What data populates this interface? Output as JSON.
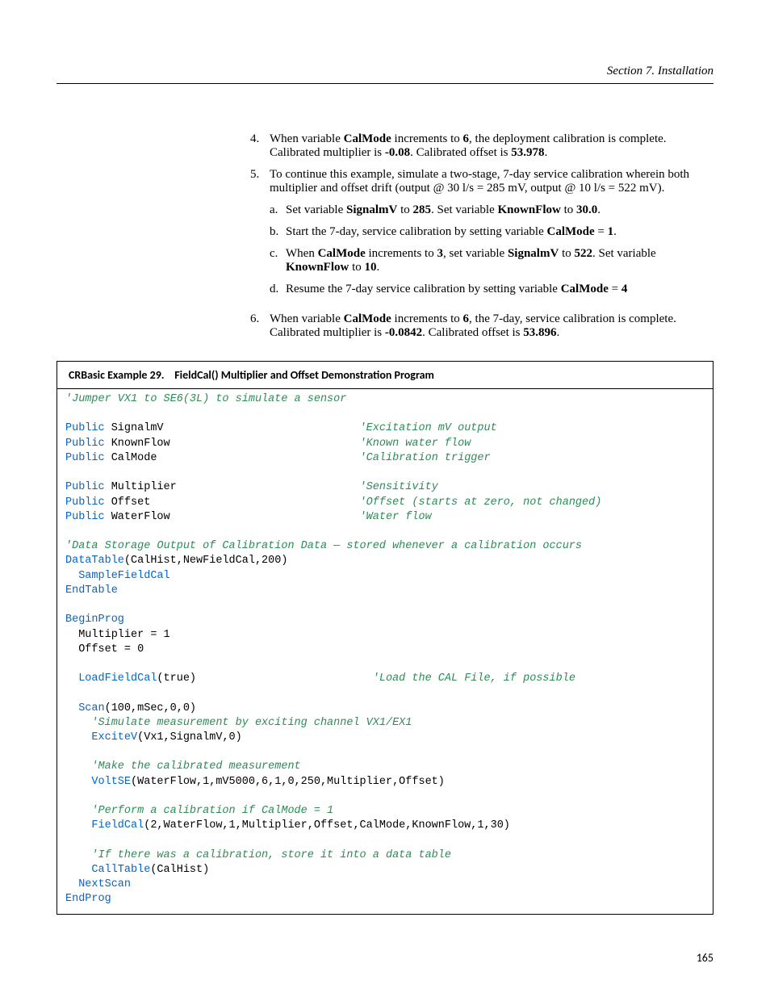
{
  "header": {
    "text": "Section 7.  Installation"
  },
  "list": {
    "item4_num": "4.",
    "item4_a": "When variable ",
    "item4_b": "CalMode",
    "item4_c": " increments to ",
    "item4_d": "6",
    "item4_e": ", the deployment calibration is complete. Calibrated multiplier is ",
    "item4_f": "-0.08",
    "item4_g": ". Calibrated offset is ",
    "item4_h": "53.978",
    "item4_i": ".",
    "item5_num": "5.",
    "item5_txt": "To continue this example, simulate a two-stage, 7-day service calibration wherein both multiplier and offset drift (output @ 30 l/s = 285 mV, output @ 10 l/s = 522 mV).",
    "sub_a_let": "a.",
    "sub_a_1": "Set variable ",
    "sub_a_b1": "SignalmV",
    "sub_a_2": " to ",
    "sub_a_b2": "285",
    "sub_a_3": ". Set variable ",
    "sub_a_b3": "KnownFlow",
    "sub_a_4": " to ",
    "sub_a_b4": "30.0",
    "sub_a_5": ".",
    "sub_b_let": "b.",
    "sub_b_1": "Start the 7-day, service calibration by setting variable ",
    "sub_b_b1": "CalMode",
    "sub_b_2": " = ",
    "sub_b_b2": "1",
    "sub_b_3": ".",
    "sub_c_let": "c.",
    "sub_c_1": "When ",
    "sub_c_b1": "CalMode",
    "sub_c_2": " increments to ",
    "sub_c_b2": "3",
    "sub_c_3": ", set variable ",
    "sub_c_b3": "SignalmV",
    "sub_c_4": " to ",
    "sub_c_b4": "522",
    "sub_c_5": ". Set variable ",
    "sub_c_b5": "KnownFlow",
    "sub_c_6": " to ",
    "sub_c_b6": "10",
    "sub_c_7": ".",
    "sub_d_let": "d.",
    "sub_d_1": "Resume the 7-day service calibration by setting variable ",
    "sub_d_b1": "CalMode",
    "sub_d_2": " = ",
    "sub_d_b2": "4",
    "item6_num": "6.",
    "item6_a": "When variable ",
    "item6_b": "CalMode",
    "item6_c": " increments to ",
    "item6_d": "6",
    "item6_e": ", the 7-day, service calibration is complete. Calibrated multiplier is ",
    "item6_f": "-0.0842",
    "item6_g": ". Calibrated offset is ",
    "item6_h": "53.896",
    "item6_i": "."
  },
  "example": {
    "label": "CRBasic Example 29.",
    "title": "FieldCal() Multiplier and Offset Demonstration Program"
  },
  "code": {
    "c01": "'Jumper VX1 to SE6(3L) to simulate a sensor",
    "kw_public": "Public",
    "l_signal": " SignalmV",
    "c_signal": "'Excitation mV output",
    "l_known": " KnownFlow",
    "c_known": "'Known water flow",
    "l_calmode": " CalMode",
    "c_calmode": "'Calibration trigger",
    "l_mult": " Multiplier",
    "c_mult": "'Sensitivity",
    "l_offset": " Offset",
    "c_offset": "'Offset (starts at zero, not changed)",
    "l_water": " WaterFlow",
    "c_water": "'Water flow",
    "c_ds": "'Data Storage Output of Calibration Data — stored whenever a calibration occurs",
    "kw_datatable": "DataTable",
    "dt_args": "(CalHist,NewFieldCal,200)",
    "kw_samplefieldcal": "SampleFieldCal",
    "kw_endtable": "EndTable",
    "kw_beginprog": "BeginProg",
    "l_mult1": "  Multiplier = 1",
    "l_off0": "  Offset = 0",
    "kw_loadfieldcal": "LoadFieldCal",
    "lfc_args": "(true)",
    "c_lfc": "'Load the CAL File, if possible",
    "kw_scan": "Scan",
    "scan_args": "(100,mSec,0,0)",
    "c_sim": "'Simulate measurement by exciting channel VX1/EX1",
    "kw_excitev": "ExciteV",
    "ev_args": "(Vx1,SignalmV,0)",
    "c_make": "'Make the calibrated measurement",
    "kw_voltse": "VoltSE",
    "vs_args": "(WaterFlow,1,mV5000,6,1,0,250,Multiplier,Offset)",
    "c_perf": "'Perform a calibration if CalMode = 1",
    "kw_fieldcal": "FieldCal",
    "fc_args": "(2,WaterFlow,1,Multiplier,Offset,CalMode,KnownFlow,1,30)",
    "c_if": "'If there was a calibration, store it into a data table",
    "kw_calltable": "CallTable",
    "ct_args": "(CalHist)",
    "kw_nextscan": "NextScan",
    "kw_endprog": "EndProg"
  },
  "page_number": "165",
  "colors": {
    "keyword": "#0066cc",
    "comment": "#2e8b57",
    "text": "#000000",
    "bg": "#ffffff"
  }
}
